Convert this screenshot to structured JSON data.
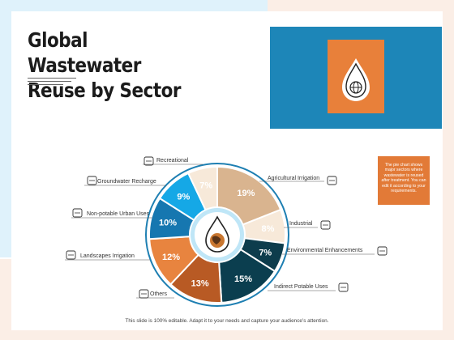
{
  "slide": {
    "title_line1": "Global Wastewater",
    "title_line2": "Reuse by Sector",
    "note": "The pie chart shows major sectors where wastewater is reused after treatment. You can edit it according to your requirements.",
    "footer": "This slide is 100% editable. Adapt it to your needs and capture your audience's attention."
  },
  "colors": {
    "hero_blue": "#1d86b8",
    "hero_orange": "#e8803a",
    "note_orange": "#e27a37"
  },
  "icons": {
    "hero": "water-drop-globe-icon",
    "center": "water-drop-earth-icon"
  },
  "chart_data": {
    "type": "pie",
    "style": "donut",
    "categories": [
      "Agricultural Irrigation",
      "Industrial",
      "Environmental Enhancements",
      "Indirect Potable Uses",
      "Others",
      "Landscapes Irrigation",
      "Non-potable Urban Uses",
      "Groundwater Recharge",
      "Recreational"
    ],
    "values": [
      19,
      8,
      7,
      15,
      13,
      12,
      10,
      9,
      7
    ],
    "value_labels": [
      "19%",
      "8%",
      "7%",
      "15%",
      "13%",
      "12%",
      "10%",
      "9%",
      "7%"
    ],
    "colors": [
      "#d9b48f",
      "#f7e9d9",
      "#0d3c4c",
      "#0b3e4f",
      "#b85a24",
      "#e8843f",
      "#1677b0",
      "#15a8e6",
      "#f7e9d9"
    ],
    "label_colors": [
      "#ffffff",
      "#ffffff",
      "#ffffff",
      "#ffffff",
      "#ffffff",
      "#ffffff",
      "#ffffff",
      "#ffffff",
      "#ffffff"
    ],
    "legend": "callouts"
  }
}
